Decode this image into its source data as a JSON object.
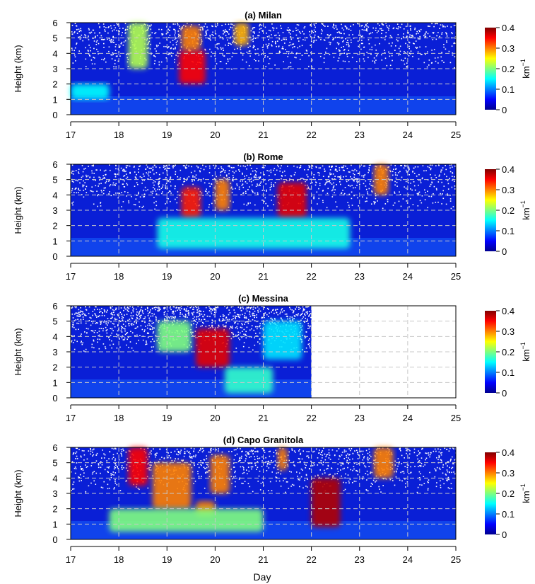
{
  "figure": {
    "xlabel": "Day"
  },
  "chart_data": [
    {
      "type": "heatmap",
      "title": "(a)  Milan",
      "xlabel": "",
      "ylabel": "Height (km)",
      "xlim": [
        17,
        25
      ],
      "ylim": [
        0,
        6
      ],
      "xticks": [
        17,
        18,
        19,
        20,
        21,
        22,
        23,
        24,
        25
      ],
      "yticks": [
        0,
        1,
        2,
        3,
        4,
        5,
        6
      ],
      "data_end_day": 25,
      "grid": true,
      "colorbar": {
        "label": "km",
        "label_exponent": "−1",
        "ticks": [
          0,
          0.1,
          0.2,
          0.3,
          0.4
        ],
        "range": [
          0,
          0.4
        ],
        "colormap": "jet"
      },
      "features": [
        {
          "day_start": 19.25,
          "day_end": 19.8,
          "height_start": 2.0,
          "height_end": 4.2,
          "value": 0.35
        },
        {
          "day_start": 19.3,
          "day_end": 19.7,
          "height_start": 4.2,
          "height_end": 5.8,
          "value": 0.3
        },
        {
          "day_start": 17.0,
          "day_end": 17.8,
          "height_start": 1.0,
          "height_end": 2.0,
          "value": 0.15
        },
        {
          "day_start": 18.2,
          "day_end": 18.6,
          "height_start": 3.0,
          "height_end": 6.0,
          "value": 0.22
        },
        {
          "day_start": 20.4,
          "day_end": 20.7,
          "height_start": 4.5,
          "height_end": 6.0,
          "value": 0.28
        }
      ]
    },
    {
      "type": "heatmap",
      "title": "(b)  Rome",
      "xlabel": "",
      "ylabel": "Height (km)",
      "xlim": [
        17,
        25
      ],
      "ylim": [
        0,
        6
      ],
      "xticks": [
        17,
        18,
        19,
        20,
        21,
        22,
        23,
        24,
        25
      ],
      "yticks": [
        0,
        1,
        2,
        3,
        4,
        5,
        6
      ],
      "data_end_day": 25,
      "grid": true,
      "colorbar": {
        "label": "km",
        "label_exponent": "−1",
        "ticks": [
          0,
          0.1,
          0.2,
          0.3,
          0.4
        ],
        "range": [
          0,
          0.4
        ],
        "colormap": "jet"
      },
      "features": [
        {
          "day_start": 19.3,
          "day_end": 19.7,
          "height_start": 2.5,
          "height_end": 4.5,
          "value": 0.34
        },
        {
          "day_start": 20.0,
          "day_end": 20.3,
          "height_start": 3.0,
          "height_end": 5.0,
          "value": 0.3
        },
        {
          "day_start": 21.3,
          "day_end": 21.9,
          "height_start": 2.5,
          "height_end": 4.8,
          "value": 0.36
        },
        {
          "day_start": 23.3,
          "day_end": 23.6,
          "height_start": 4.0,
          "height_end": 6.0,
          "value": 0.3
        },
        {
          "day_start": 18.8,
          "day_end": 22.8,
          "height_start": 0.5,
          "height_end": 2.5,
          "value": 0.16
        }
      ]
    },
    {
      "type": "heatmap",
      "title": "(c)  Messina",
      "xlabel": "",
      "ylabel": "Height (km)",
      "xlim": [
        17,
        25
      ],
      "ylim": [
        0,
        6
      ],
      "xticks": [
        17,
        18,
        19,
        20,
        21,
        22,
        23,
        24,
        25
      ],
      "yticks": [
        0,
        1,
        2,
        3,
        4,
        5,
        6
      ],
      "data_end_day": 22,
      "grid": true,
      "colorbar": {
        "label": "km",
        "label_exponent": "−1",
        "ticks": [
          0,
          0.1,
          0.2,
          0.3,
          0.4
        ],
        "range": [
          0,
          0.4
        ],
        "colormap": "jet"
      },
      "features": [
        {
          "day_start": 19.6,
          "day_end": 20.3,
          "height_start": 2.0,
          "height_end": 4.5,
          "value": 0.36
        },
        {
          "day_start": 18.8,
          "day_end": 19.5,
          "height_start": 3.0,
          "height_end": 5.0,
          "value": 0.2
        },
        {
          "day_start": 20.2,
          "day_end": 21.2,
          "height_start": 0.3,
          "height_end": 2.0,
          "value": 0.17
        },
        {
          "day_start": 21.0,
          "day_end": 21.8,
          "height_start": 2.5,
          "height_end": 5.0,
          "value": 0.14
        }
      ]
    },
    {
      "type": "heatmap",
      "title": "(d)  Capo Granitola",
      "xlabel": "Day",
      "ylabel": "Height (km)",
      "xlim": [
        17,
        25
      ],
      "ylim": [
        0,
        6
      ],
      "xticks": [
        17,
        18,
        19,
        20,
        21,
        22,
        23,
        24,
        25
      ],
      "yticks": [
        0,
        1,
        2,
        3,
        4,
        5,
        6
      ],
      "data_end_day": 25,
      "grid": true,
      "colorbar": {
        "label": "km",
        "label_exponent": "−1",
        "ticks": [
          0,
          0.1,
          0.2,
          0.3,
          0.4
        ],
        "range": [
          0,
          0.4
        ],
        "colormap": "jet"
      },
      "features": [
        {
          "day_start": 18.2,
          "day_end": 18.6,
          "height_start": 3.5,
          "height_end": 6.0,
          "value": 0.35
        },
        {
          "day_start": 18.7,
          "day_end": 19.5,
          "height_start": 2.0,
          "height_end": 5.0,
          "value": 0.3
        },
        {
          "day_start": 19.6,
          "day_end": 20.0,
          "height_start": 1.5,
          "height_end": 2.5,
          "value": 0.3
        },
        {
          "day_start": 19.9,
          "day_end": 20.3,
          "height_start": 3.0,
          "height_end": 5.5,
          "value": 0.3
        },
        {
          "day_start": 22.0,
          "day_end": 22.6,
          "height_start": 0.8,
          "height_end": 4.0,
          "value": 0.38
        },
        {
          "day_start": 21.3,
          "day_end": 21.5,
          "height_start": 4.5,
          "height_end": 6.0,
          "value": 0.3
        },
        {
          "day_start": 23.3,
          "day_end": 23.7,
          "height_start": 4.0,
          "height_end": 6.0,
          "value": 0.3
        },
        {
          "day_start": 17.8,
          "day_end": 21.0,
          "height_start": 0.5,
          "height_end": 2.0,
          "value": 0.2
        }
      ]
    }
  ]
}
